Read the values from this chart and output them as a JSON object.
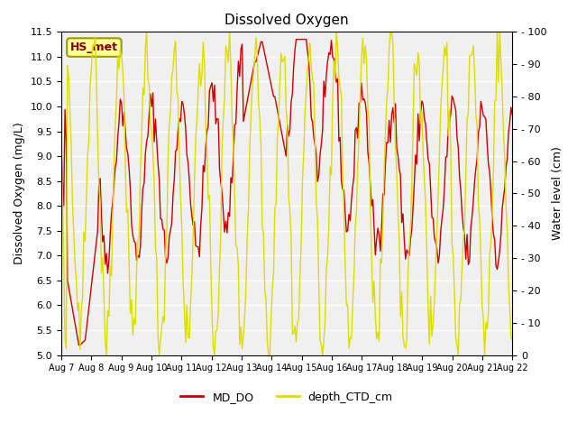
{
  "title": "Dissolved Oxygen",
  "ylabel_left": "Dissolved Oxygen (mg/L)",
  "ylabel_right": "Water level (cm)",
  "ylim_left": [
    5.0,
    11.5
  ],
  "ylim_right": [
    0,
    100
  ],
  "yticks_left": [
    5.0,
    5.5,
    6.0,
    6.5,
    7.0,
    7.5,
    8.0,
    8.5,
    9.0,
    9.5,
    10.0,
    10.5,
    11.0,
    11.5
  ],
  "yticks_right": [
    0,
    10,
    20,
    30,
    40,
    50,
    60,
    70,
    80,
    90,
    100
  ],
  "xtick_labels": [
    "Aug 7",
    "Aug 8",
    "Aug 9",
    "Aug 10",
    "Aug 11",
    "Aug 12",
    "Aug 13",
    "Aug 14",
    "Aug 15",
    "Aug 16",
    "Aug 17",
    "Aug 18",
    "Aug 19",
    "Aug 20",
    "Aug 21",
    "Aug 22"
  ],
  "annotation_text": "HS_met",
  "line_do_color": "#cc0000",
  "line_depth_color": "#dddd00",
  "legend_do_label": "MD_DO",
  "legend_depth_label": "depth_CTD_cm",
  "bg_color": "#f0f0f0",
  "num_days": 15
}
